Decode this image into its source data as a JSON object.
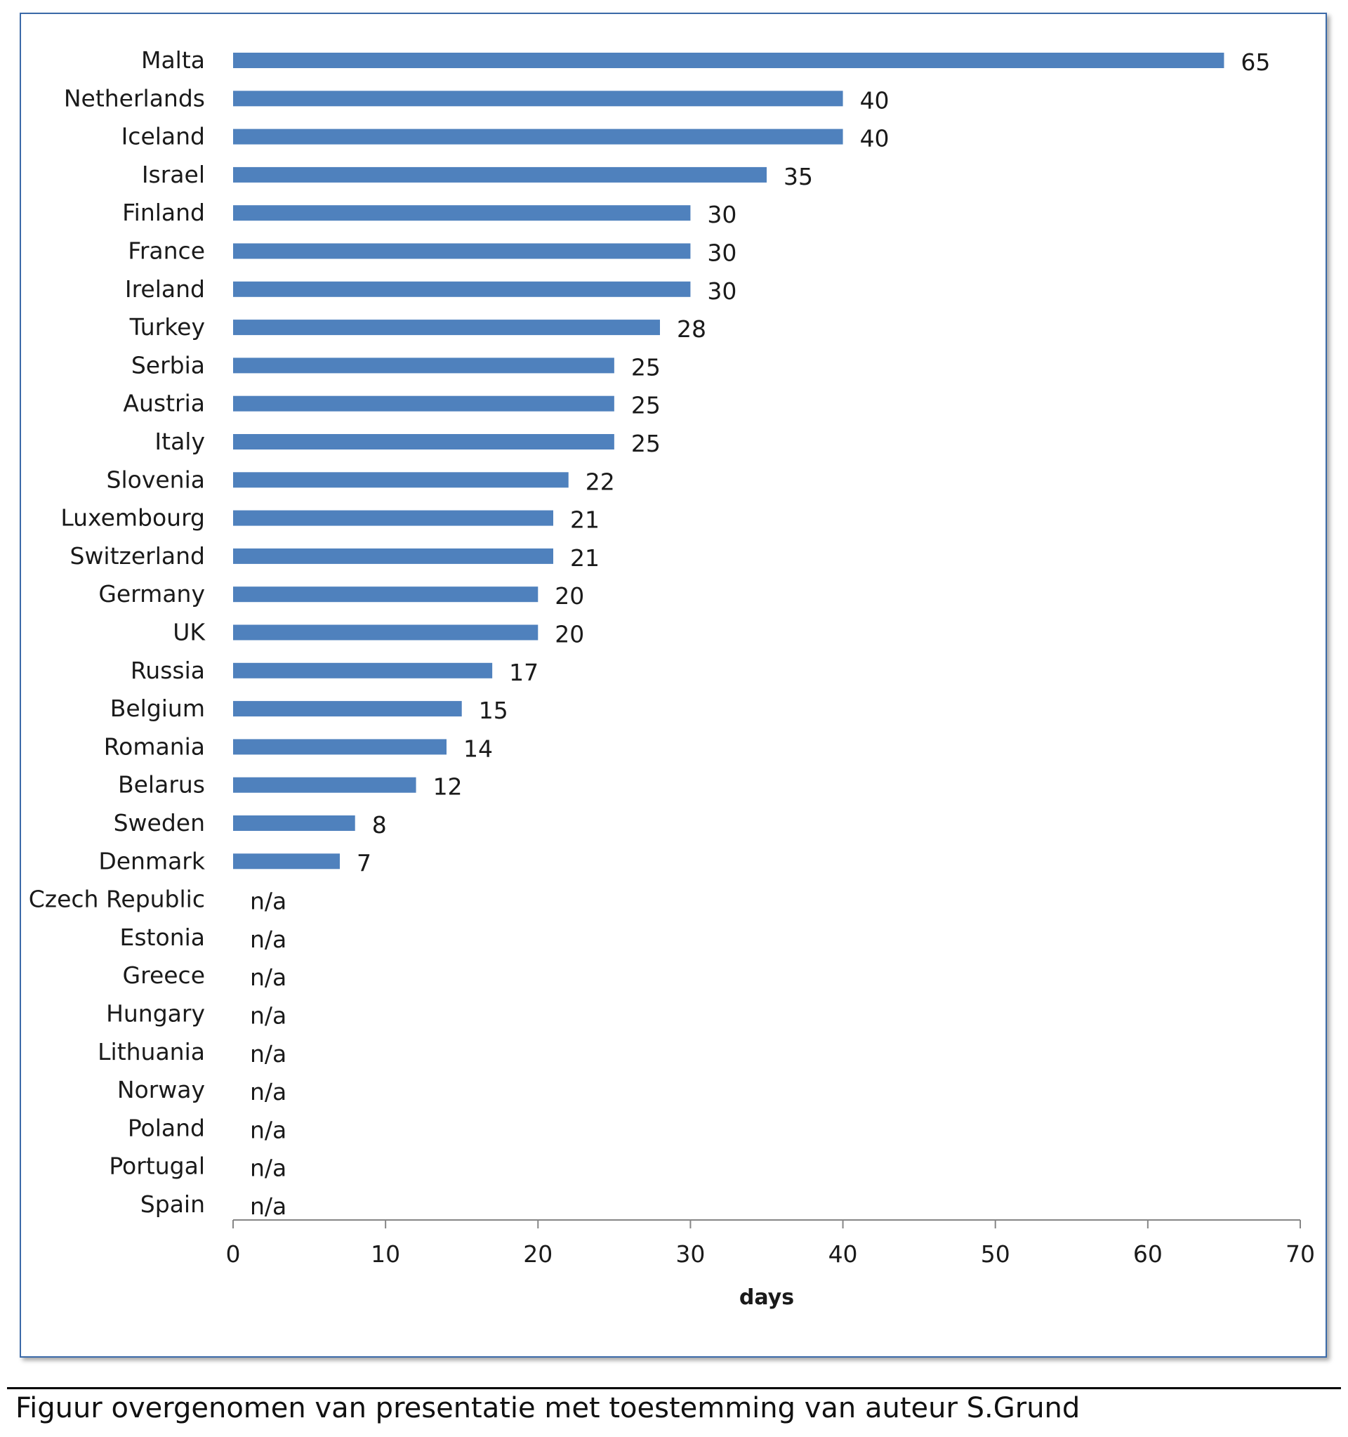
{
  "chart_data": {
    "type": "bar",
    "orientation": "horizontal",
    "categories": [
      "Malta",
      "Netherlands",
      "Iceland",
      "Israel",
      "Finland",
      "France",
      "Ireland",
      "Turkey",
      "Serbia",
      "Austria",
      "Italy",
      "Slovenia",
      "Luxembourg",
      "Switzerland",
      "Germany",
      "UK",
      "Russia",
      "Belgium",
      "Romania",
      "Belarus",
      "Sweden",
      "Denmark",
      "Czech Republic",
      "Estonia",
      "Greece",
      "Hungary",
      "Lithuania",
      "Norway",
      "Poland",
      "Portugal",
      "Spain"
    ],
    "values": [
      65,
      40,
      40,
      35,
      30,
      30,
      30,
      28,
      25,
      25,
      25,
      22,
      21,
      21,
      20,
      20,
      17,
      15,
      14,
      12,
      8,
      7,
      null,
      null,
      null,
      null,
      null,
      null,
      null,
      null,
      null
    ],
    "value_labels": [
      "65",
      "40",
      "40",
      "35",
      "30",
      "30",
      "30",
      "28",
      "25",
      "25",
      "25",
      "22",
      "21",
      "21",
      "20",
      "20",
      "17",
      "15",
      "14",
      "12",
      "8",
      "7",
      "n/a",
      "n/a",
      "n/a",
      "n/a",
      "n/a",
      "n/a",
      "n/a",
      "n/a",
      "n/a"
    ],
    "xlabel": "days",
    "ylabel": "",
    "xlim": [
      0,
      70
    ],
    "xticks": [
      0,
      10,
      20,
      30,
      40,
      50,
      60,
      70
    ],
    "grid": false,
    "legend": "none",
    "bar_color": "#4f81bd"
  },
  "caption": "Figuur overgenomen van presentatie met toestemming van auteur S.Grund"
}
